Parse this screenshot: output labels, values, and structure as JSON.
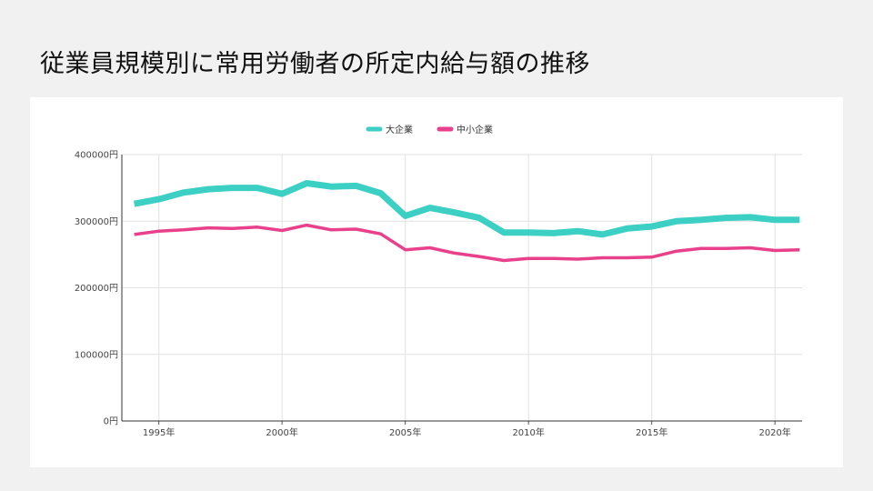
{
  "title": "従業員規模別に常用労働者の所定内給与額の推移",
  "chart_data": {
    "type": "line",
    "x": [
      1994,
      1995,
      1996,
      1997,
      1998,
      1999,
      2000,
      2001,
      2002,
      2003,
      2004,
      2005,
      2006,
      2007,
      2008,
      2009,
      2010,
      2011,
      2012,
      2013,
      2014,
      2015,
      2016,
      2017,
      2018,
      2019,
      2020,
      2021
    ],
    "series": [
      {
        "name": "大企業",
        "color": "#3ccfc4",
        "values": [
          326000,
          333000,
          343000,
          348000,
          350000,
          350000,
          341000,
          357000,
          352000,
          353000,
          342000,
          308000,
          320000,
          313000,
          305000,
          283000,
          283000,
          282000,
          285000,
          280000,
          289000,
          292000,
          300000,
          302000,
          305000,
          306000,
          302000,
          302000
        ]
      },
      {
        "name": "中小企業",
        "color": "#e8408a",
        "values": [
          280000,
          285000,
          287000,
          290000,
          289000,
          291000,
          286000,
          294000,
          287000,
          288000,
          281000,
          257000,
          260000,
          252000,
          247000,
          241000,
          244000,
          244000,
          243000,
          245000,
          245000,
          246000,
          255000,
          259000,
          259000,
          260000,
          256000,
          257000
        ]
      }
    ],
    "x_ticks": [
      {
        "value": 1995,
        "label": "1995年"
      },
      {
        "value": 2000,
        "label": "2000年"
      },
      {
        "value": 2005,
        "label": "2005年"
      },
      {
        "value": 2010,
        "label": "2010年"
      },
      {
        "value": 2015,
        "label": "2015年"
      },
      {
        "value": 2020,
        "label": "2020年"
      }
    ],
    "y_ticks": [
      {
        "value": 0,
        "label": "0円"
      },
      {
        "value": 100000,
        "label": "100000円"
      },
      {
        "value": 200000,
        "label": "200000円"
      },
      {
        "value": 300000,
        "label": "300000円"
      },
      {
        "value": 400000,
        "label": "400000円"
      }
    ],
    "xlim": [
      1993.5,
      2021.1
    ],
    "ylim": [
      0,
      400000
    ],
    "grid": true,
    "legend_position": "top-center"
  }
}
